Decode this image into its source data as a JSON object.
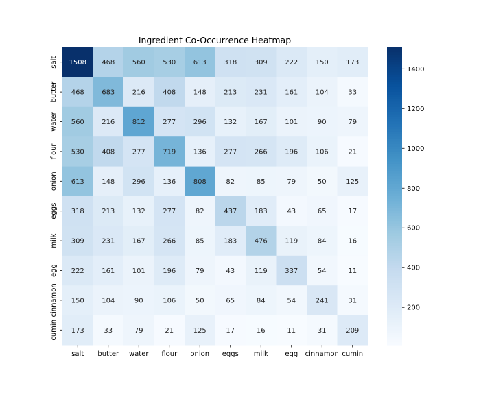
{
  "chart_data": {
    "type": "heatmap",
    "title": "Ingredient Co-Occurrence Heatmap",
    "xlabel": "",
    "ylabel": "",
    "x_categories": [
      "salt",
      "butter",
      "water",
      "flour",
      "onion",
      "eggs",
      "milk",
      "egg",
      "cinnamon",
      "cumin"
    ],
    "y_categories": [
      "salt",
      "butter",
      "water",
      "flour",
      "onion",
      "eggs",
      "milk",
      "egg",
      "cinnamon",
      "cumin"
    ],
    "values": [
      [
        1508,
        468,
        560,
        530,
        613,
        318,
        309,
        222,
        150,
        173
      ],
      [
        468,
        683,
        216,
        408,
        148,
        213,
        231,
        161,
        104,
        33
      ],
      [
        560,
        216,
        812,
        277,
        296,
        132,
        167,
        101,
        90,
        79
      ],
      [
        530,
        408,
        277,
        719,
        136,
        277,
        266,
        196,
        106,
        21
      ],
      [
        613,
        148,
        296,
        136,
        808,
        82,
        85,
        79,
        50,
        125
      ],
      [
        318,
        213,
        132,
        277,
        82,
        437,
        183,
        43,
        65,
        17
      ],
      [
        309,
        231,
        167,
        266,
        85,
        183,
        476,
        119,
        84,
        16
      ],
      [
        222,
        161,
        101,
        196,
        79,
        43,
        119,
        337,
        54,
        11
      ],
      [
        150,
        104,
        90,
        106,
        50,
        65,
        84,
        54,
        241,
        31
      ],
      [
        173,
        33,
        79,
        21,
        125,
        17,
        16,
        11,
        31,
        209
      ]
    ],
    "colormap": "Blues",
    "color_range": [
      11,
      1508
    ],
    "colorbar_ticks": [
      200,
      400,
      600,
      800,
      1000,
      1200,
      1400
    ],
    "annotated": true,
    "grid": false,
    "legend": "colorbar-right"
  }
}
